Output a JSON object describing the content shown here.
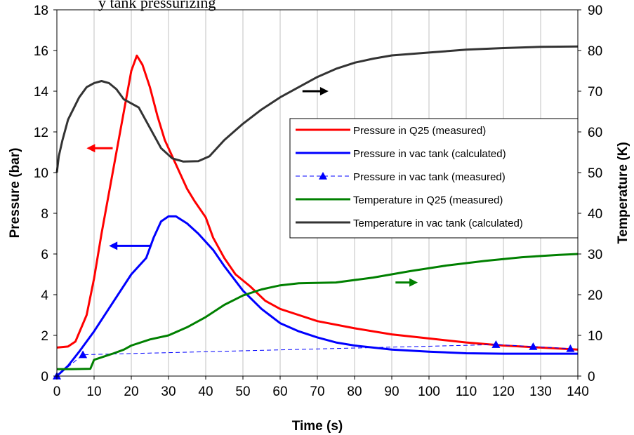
{
  "caption": "y tank pressurizing",
  "chart_data": {
    "type": "line",
    "xlabel": "Time (s)",
    "ylabel": "Pressure (bar)",
    "y2label": "Temperature (K)",
    "xlim": [
      0,
      140
    ],
    "ylim": [
      0,
      18
    ],
    "y2lim": [
      0,
      90
    ],
    "xticks": [
      0,
      10,
      20,
      30,
      40,
      50,
      60,
      70,
      80,
      90,
      100,
      110,
      120,
      130,
      140
    ],
    "yticks": [
      0,
      2,
      4,
      6,
      8,
      10,
      12,
      14,
      16,
      18
    ],
    "y2ticks": [
      0,
      10,
      20,
      30,
      40,
      50,
      60,
      70,
      80,
      90
    ],
    "grid": "vertical",
    "legend_position": "right",
    "series": [
      {
        "name": "Pressure in Q25 (measured)",
        "axis": "left",
        "color": "#ff0000",
        "style": "solid",
        "points": [
          [
            0,
            1.4
          ],
          [
            3,
            1.45
          ],
          [
            5,
            1.7
          ],
          [
            8,
            3.0
          ],
          [
            10,
            4.8
          ],
          [
            12,
            7.0
          ],
          [
            14,
            9.0
          ],
          [
            16,
            11.0
          ],
          [
            18,
            13.0
          ],
          [
            20,
            15.0
          ],
          [
            21.5,
            15.75
          ],
          [
            23,
            15.3
          ],
          [
            25,
            14.2
          ],
          [
            27,
            12.8
          ],
          [
            29,
            11.6
          ],
          [
            31,
            10.8
          ],
          [
            33,
            10.0
          ],
          [
            35,
            9.2
          ],
          [
            37,
            8.6
          ],
          [
            40,
            7.8
          ],
          [
            42,
            6.8
          ],
          [
            45,
            5.8
          ],
          [
            48,
            5.0
          ],
          [
            52,
            4.4
          ],
          [
            56,
            3.7
          ],
          [
            60,
            3.3
          ],
          [
            65,
            3.0
          ],
          [
            70,
            2.7
          ],
          [
            80,
            2.35
          ],
          [
            90,
            2.05
          ],
          [
            100,
            1.85
          ],
          [
            110,
            1.65
          ],
          [
            120,
            1.5
          ],
          [
            130,
            1.4
          ],
          [
            140,
            1.3
          ]
        ]
      },
      {
        "name": "Pressure in vac tank (calculated)",
        "axis": "left",
        "color": "#0000ff",
        "style": "solid",
        "points": [
          [
            0,
            0
          ],
          [
            3,
            0.5
          ],
          [
            6,
            1.2
          ],
          [
            10,
            2.2
          ],
          [
            15,
            3.6
          ],
          [
            20,
            5.0
          ],
          [
            24,
            5.8
          ],
          [
            26,
            6.8
          ],
          [
            28,
            7.6
          ],
          [
            30,
            7.85
          ],
          [
            32,
            7.85
          ],
          [
            35,
            7.5
          ],
          [
            38,
            7.0
          ],
          [
            42,
            6.2
          ],
          [
            45,
            5.4
          ],
          [
            50,
            4.2
          ],
          [
            55,
            3.3
          ],
          [
            60,
            2.6
          ],
          [
            65,
            2.2
          ],
          [
            70,
            1.9
          ],
          [
            75,
            1.65
          ],
          [
            80,
            1.5
          ],
          [
            85,
            1.4
          ],
          [
            90,
            1.3
          ],
          [
            100,
            1.2
          ],
          [
            110,
            1.12
          ],
          [
            120,
            1.1
          ],
          [
            130,
            1.1
          ],
          [
            140,
            1.1
          ]
        ]
      },
      {
        "name": "Pressure in vac tank (measured)",
        "axis": "left",
        "color": "#0000ff",
        "style": "dashed",
        "marker": "triangle",
        "points": [
          [
            0,
            0
          ],
          [
            7,
            1.05
          ],
          [
            118,
            1.55
          ],
          [
            128,
            1.45
          ],
          [
            138,
            1.35
          ]
        ]
      },
      {
        "name": "Temperature in Q25 (measured)",
        "axis": "right",
        "color": "#008000",
        "style": "solid",
        "points": [
          [
            0,
            1.7
          ],
          [
            4,
            1.7
          ],
          [
            9,
            1.8
          ],
          [
            10,
            4.0
          ],
          [
            15,
            5.5
          ],
          [
            18,
            6.5
          ],
          [
            20,
            7.5
          ],
          [
            25,
            9.0
          ],
          [
            30,
            10.0
          ],
          [
            35,
            12.0
          ],
          [
            40,
            14.5
          ],
          [
            45,
            17.5
          ],
          [
            50,
            19.8
          ],
          [
            55,
            21.3
          ],
          [
            60,
            22.3
          ],
          [
            65,
            22.8
          ],
          [
            75,
            23.0
          ],
          [
            85,
            24.2
          ],
          [
            95,
            25.8
          ],
          [
            105,
            27.2
          ],
          [
            115,
            28.3
          ],
          [
            125,
            29.2
          ],
          [
            135,
            29.8
          ],
          [
            140,
            30.0
          ]
        ]
      },
      {
        "name": "Temperature in vac tank (calculated)",
        "axis": "right",
        "color": "#333333",
        "style": "solid",
        "points": [
          [
            0,
            50
          ],
          [
            0.5,
            54
          ],
          [
            1.5,
            58
          ],
          [
            3,
            63
          ],
          [
            6,
            68.5
          ],
          [
            8,
            71
          ],
          [
            10,
            72
          ],
          [
            12,
            72.5
          ],
          [
            14,
            72
          ],
          [
            16,
            70.5
          ],
          [
            18,
            68
          ],
          [
            22,
            66
          ],
          [
            25,
            61
          ],
          [
            28,
            56
          ],
          [
            31,
            53.5
          ],
          [
            34,
            52.7
          ],
          [
            38,
            52.8
          ],
          [
            41,
            54
          ],
          [
            45,
            58
          ],
          [
            50,
            62
          ],
          [
            55,
            65.5
          ],
          [
            60,
            68.5
          ],
          [
            65,
            71
          ],
          [
            70,
            73.5
          ],
          [
            75,
            75.5
          ],
          [
            80,
            77
          ],
          [
            85,
            78
          ],
          [
            90,
            78.8
          ],
          [
            100,
            79.5
          ],
          [
            110,
            80.2
          ],
          [
            120,
            80.6
          ],
          [
            130,
            80.9
          ],
          [
            140,
            81
          ]
        ]
      }
    ],
    "annotations": [
      {
        "type": "arrow",
        "direction": "left",
        "color": "#ff0000",
        "points_to": "left",
        "x_data": [
          8,
          15
        ],
        "y_data": 11.2
      },
      {
        "type": "arrow",
        "direction": "left",
        "color": "#0000ff",
        "points_to": "left",
        "x_data": [
          14,
          25
        ],
        "y_data": 6.4
      },
      {
        "type": "arrow",
        "direction": "right",
        "color": "#000000",
        "points_to": "right",
        "x_data": [
          66,
          73
        ],
        "y_data": 14.0
      },
      {
        "type": "arrow",
        "direction": "right",
        "color": "#008000",
        "points_to": "right",
        "x_data": [
          91,
          97
        ],
        "y_data": 4.6
      }
    ]
  }
}
